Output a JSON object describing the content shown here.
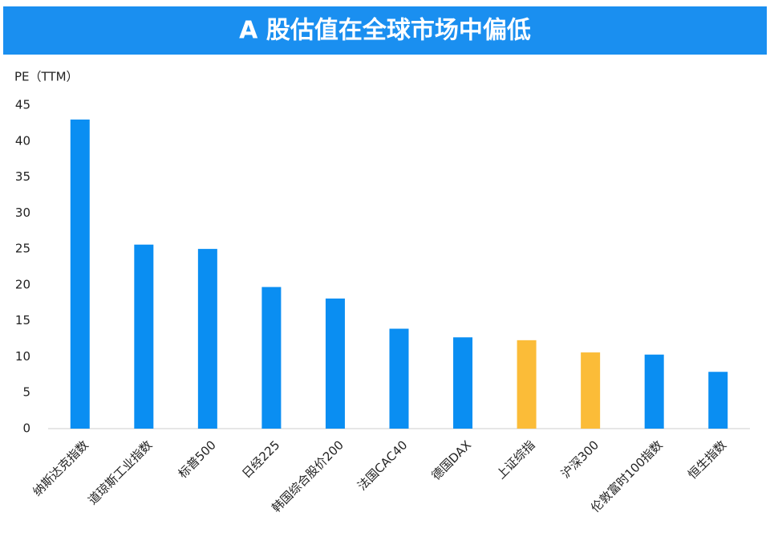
{
  "chart_data": {
    "type": "bar",
    "title": "A 股估值在全球市场中偏低",
    "y_label": "PE（TTM）",
    "categories": [
      "纳斯达克指数",
      "道琼斯工业指数",
      "标普500",
      "日经225",
      "韩国综合股价200",
      "法国CAC40",
      "德国DAX",
      "上证综指",
      "沪深300",
      "伦敦富时100指数",
      "恒生指数"
    ],
    "values": [
      43,
      25.6,
      25,
      19.7,
      18.1,
      13.9,
      12.7,
      12.3,
      10.6,
      10.3,
      7.9
    ],
    "colors": [
      "#0a8ef2",
      "#0a8ef2",
      "#0a8ef2",
      "#0a8ef2",
      "#0a8ef2",
      "#0a8ef2",
      "#0a8ef2",
      "#fbbc38",
      "#fbbc38",
      "#0a8ef2",
      "#0a8ef2"
    ],
    "ylim": [
      0,
      45
    ],
    "yticks": [
      0,
      5,
      10,
      15,
      20,
      25,
      30,
      35,
      40,
      45
    ],
    "grid": false
  }
}
